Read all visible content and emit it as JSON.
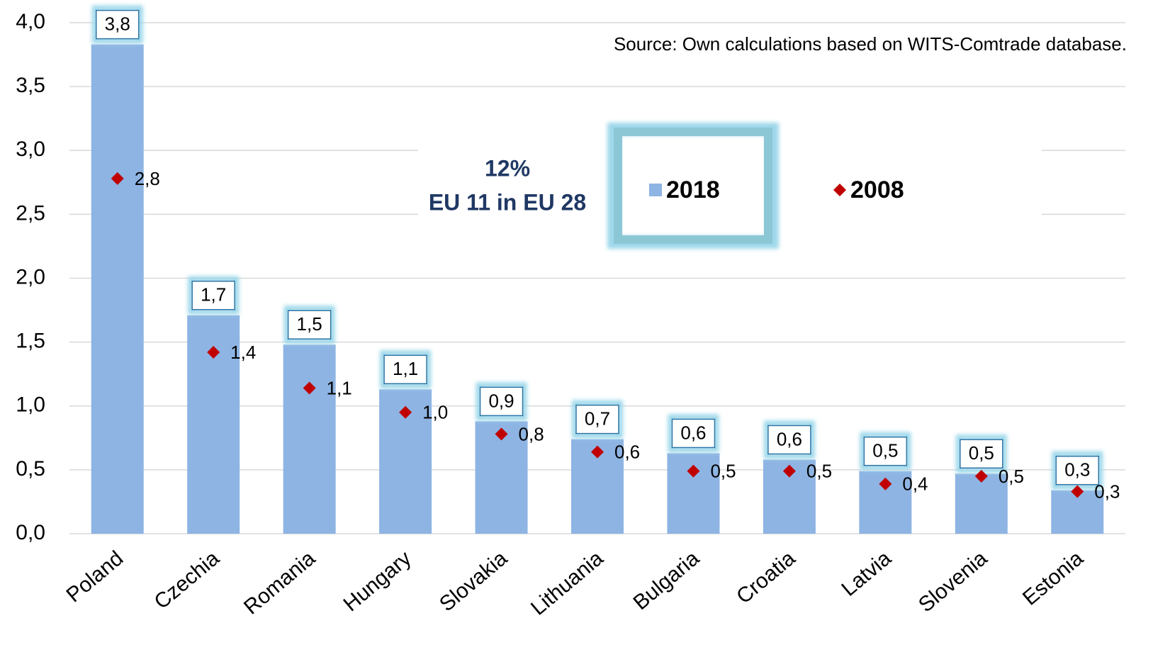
{
  "chart_data": {
    "type": "bar",
    "source": "Source: Own calculations based on WITS-Comtrade database.",
    "annotations": [
      "12%",
      "EU 11 in EU 28"
    ],
    "categories": [
      "Poland",
      "Czechia",
      "Romania",
      "Hungary",
      "Slovakia",
      "Lithuania",
      "Bulgaria",
      "Croatia",
      "Latvia",
      "Slovenia",
      "Estonia"
    ],
    "series": [
      {
        "name": "2018",
        "color": "#8eb4e3",
        "mark": "bar",
        "values": [
          3.83,
          1.71,
          1.48,
          1.13,
          0.88,
          0.74,
          0.63,
          0.58,
          0.49,
          0.47,
          0.34
        ],
        "value_labels": [
          "3,8",
          "1,7",
          "1,5",
          "1,1",
          "0,9",
          "0,7",
          "0,6",
          "0,6",
          "0,5",
          "0,5",
          "0,3"
        ]
      },
      {
        "name": "2008",
        "color": "#c00000",
        "mark": "diamond",
        "values": [
          2.78,
          1.42,
          1.14,
          0.95,
          0.78,
          0.64,
          0.49,
          0.49,
          0.39,
          0.45,
          0.33
        ],
        "value_labels": [
          "2,8",
          "1,4",
          "1,1",
          "1,0",
          "0,8",
          "0,6",
          "0,5",
          "0,5",
          "0,4",
          "0,5",
          "0,3"
        ]
      }
    ],
    "ylim": [
      0,
      4
    ],
    "yticks": [
      {
        "value": 0,
        "label": "0,0"
      },
      {
        "value": 0.5,
        "label": "0,5"
      },
      {
        "value": 1,
        "label": "1,0"
      },
      {
        "value": 1.5,
        "label": "1,5"
      },
      {
        "value": 2,
        "label": "2,0"
      },
      {
        "value": 2.5,
        "label": "2,5"
      },
      {
        "value": 3,
        "label": "3,0"
      },
      {
        "value": 3.5,
        "label": "3,5"
      },
      {
        "value": 4,
        "label": "4,0"
      }
    ],
    "grid": true,
    "legend": "top"
  }
}
